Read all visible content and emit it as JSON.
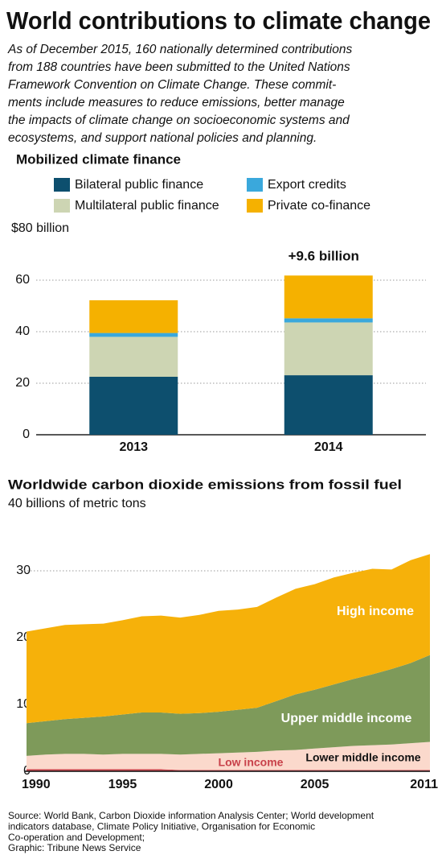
{
  "header": {
    "title": "World contributions to climate change",
    "intro": [
      "As of December 2015, 160 nationally determined contributions",
      "from 188 countries have been submitted to the United Nations",
      "Framework Convention on Climate Change. These commit-",
      "ments include measures to reduce emissions, better manage",
      "the impacts of climate change on socioeconomic systems and",
      "ecosystems, and support national policies and planning."
    ]
  },
  "chart_data": [
    {
      "type": "bar",
      "stacked": true,
      "title": "Mobilized climate finance",
      "categories": [
        "2013",
        "2014"
      ],
      "series": [
        {
          "name": "Bilateral public finance",
          "color": "#0d4f6e",
          "values": [
            22.5,
            23.1
          ]
        },
        {
          "name": "Multilateral public finance",
          "color": "#cdd5b3",
          "values": [
            15.5,
            20.5
          ]
        },
        {
          "name": "Export credits",
          "color": "#3aa8dc",
          "values": [
            1.5,
            1.6
          ]
        },
        {
          "name": "Private co-finance",
          "color": "#f5b100",
          "values": [
            12.7,
            16.6
          ]
        }
      ],
      "annotation": "+9.6 billion",
      "ylim": [
        0,
        80
      ],
      "yticks": [
        0,
        20,
        40,
        60,
        {
          "value": 80,
          "label": "$80 billion"
        }
      ],
      "grid": true
    },
    {
      "type": "area",
      "stacked": true,
      "title": "Worldwide carbon dioxide emissions from fossil fuel",
      "x": [
        1990,
        1991,
        1992,
        1993,
        1994,
        1995,
        1996,
        1997,
        1998,
        1999,
        2000,
        2001,
        2002,
        2003,
        2004,
        2005,
        2006,
        2007,
        2008,
        2009,
        2010,
        2011
      ],
      "series": [
        {
          "name": "Low income",
          "color": "#c8414a",
          "values": [
            0.3,
            0.3,
            0.3,
            0.3,
            0.3,
            0.3,
            0.3,
            0.3,
            0.2,
            0.2,
            0.2,
            0.2,
            0.2,
            0.2,
            0.2,
            0.2,
            0.2,
            0.2,
            0.2,
            0.2,
            0.2,
            0.2
          ]
        },
        {
          "name": "Lower middle income",
          "color": "#fbd9cc",
          "values": [
            2.0,
            2.2,
            2.3,
            2.3,
            2.2,
            2.3,
            2.3,
            2.3,
            2.3,
            2.4,
            2.5,
            2.6,
            2.7,
            2.9,
            3.0,
            3.2,
            3.4,
            3.6,
            3.7,
            3.8,
            4.0,
            4.2
          ]
        },
        {
          "name": "Upper middle income",
          "color": "#7e9a5a",
          "values": [
            4.9,
            5.0,
            5.2,
            5.4,
            5.7,
            5.9,
            6.2,
            6.2,
            6.1,
            6.1,
            6.2,
            6.4,
            6.6,
            7.4,
            8.3,
            8.8,
            9.4,
            10.0,
            10.6,
            11.3,
            12.0,
            13.0
          ]
        },
        {
          "name": "High income",
          "color": "#f6b10a",
          "values": [
            13.7,
            13.9,
            14.1,
            14.0,
            13.9,
            14.1,
            14.4,
            14.5,
            14.4,
            14.7,
            15.1,
            15.0,
            15.1,
            15.5,
            15.8,
            15.8,
            16.0,
            15.9,
            15.8,
            14.9,
            15.4,
            15.1
          ]
        }
      ],
      "xlim": [
        1990,
        2011
      ],
      "xticks": [
        1990,
        1995,
        2000,
        2005,
        2011
      ],
      "ylim": [
        0,
        40
      ],
      "yticks": [
        0,
        10,
        20,
        30,
        {
          "value": 40,
          "label": "40 billions of metric tons"
        }
      ],
      "grid": true
    }
  ],
  "source": [
    "Source: World Bank, Carbon Dioxide information Analysis Center; World development",
    "indicators database, Climate Policy Initiative,  Organisation for Economic",
    "Co-operation and Development;",
    "Graphic: Tribune News Service"
  ]
}
